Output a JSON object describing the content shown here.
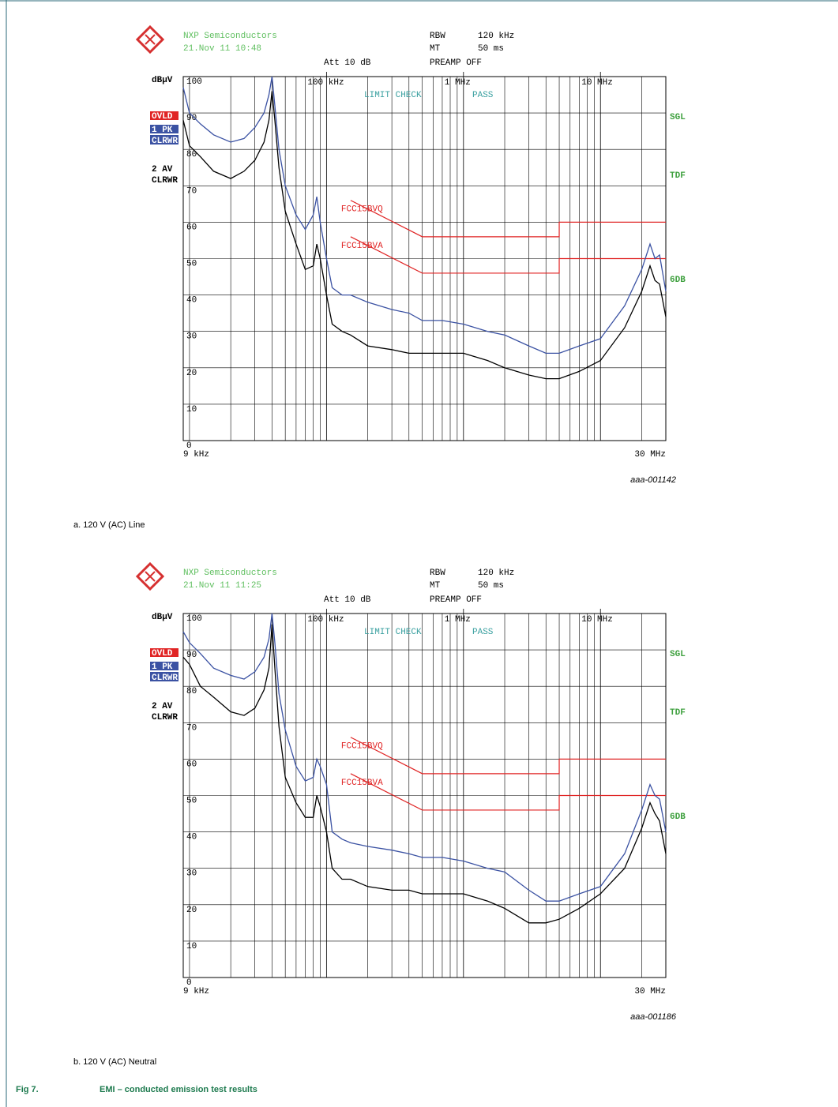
{
  "chart_data": [
    {
      "type": "line",
      "xscale": "log",
      "grid": true,
      "header": {
        "company": "NXP Semiconductors",
        "datetime": "21.Nov 11 10:48",
        "rbw_label": "RBW",
        "rbw": "120 kHz",
        "mt_label": "MT",
        "mt": "50 ms",
        "att": "Att 10 dB",
        "preamp": "PREAMP OFF"
      },
      "ylabel": "dBµV",
      "overload": "OVLD",
      "trace_mode": "CLRWR",
      "right_labels": [
        "SGL",
        "TDF",
        "6DB"
      ],
      "limit_check": "LIMIT CHECK",
      "limit_result": "PASS",
      "xlim": [
        9000,
        30000000
      ],
      "xlim_labels": [
        "9 kHz",
        "30 MHz"
      ],
      "xticks": [
        {
          "value": 100000,
          "label": "100 kHz"
        },
        {
          "value": 1000000,
          "label": "1 MHz"
        },
        {
          "value": 10000000,
          "label": "10 MHz"
        }
      ],
      "xgrid": [
        10000,
        20000,
        30000,
        40000,
        50000,
        60000,
        70000,
        80000,
        90000,
        200000,
        300000,
        400000,
        500000,
        600000,
        700000,
        800000,
        900000,
        2000000,
        3000000,
        4000000,
        5000000,
        6000000,
        7000000,
        8000000,
        9000000,
        20000000
      ],
      "ylim": [
        0,
        100
      ],
      "yticks": [
        0,
        10,
        20,
        30,
        40,
        50,
        60,
        70,
        80,
        90,
        100
      ],
      "x": [
        9000,
        10000,
        12000,
        15000,
        20000,
        25000,
        30000,
        35000,
        38000,
        40000,
        42000,
        45000,
        50000,
        60000,
        70000,
        80000,
        85000,
        90000,
        100000,
        110000,
        130000,
        150000,
        200000,
        300000,
        400000,
        500000,
        700000,
        1000000,
        1500000,
        2000000,
        3000000,
        4000000,
        5000000,
        7000000,
        10000000,
        15000000,
        20000000,
        23000000,
        25000000,
        27000000,
        30000000
      ],
      "series": [
        {
          "name": "1 PK",
          "color": "#3b52a3",
          "values": [
            97,
            90,
            87,
            84,
            82,
            83,
            86,
            90,
            95,
            100,
            92,
            80,
            70,
            62,
            58,
            62,
            67,
            60,
            50,
            42,
            40,
            40,
            38,
            36,
            35,
            33,
            33,
            32,
            30,
            29,
            26,
            24,
            24,
            26,
            28,
            37,
            47,
            54,
            50,
            51,
            41
          ]
        },
        {
          "name": "2 AV",
          "color": "#000000",
          "values": [
            88,
            81,
            78,
            74,
            72,
            74,
            77,
            82,
            88,
            96,
            88,
            75,
            63,
            54,
            47,
            48,
            54,
            50,
            40,
            32,
            30,
            29,
            26,
            25,
            24,
            24,
            24,
            24,
            22,
            20,
            18,
            17,
            17,
            19,
            22,
            31,
            41,
            48,
            44,
            43,
            34
          ]
        }
      ],
      "limits": [
        {
          "name": "FCC15BVQ",
          "color": "#e02424",
          "x": [
            150000,
            500000,
            5000000,
            5000000,
            30000000
          ],
          "values": [
            66,
            56,
            56,
            60,
            60
          ]
        },
        {
          "name": "FCC15BVA",
          "color": "#e02424",
          "x": [
            150000,
            500000,
            5000000,
            5000000,
            30000000
          ],
          "values": [
            56,
            46,
            46,
            50,
            50
          ]
        }
      ],
      "figure_id": "aaa-001142",
      "caption": "a.  120 V (AC) Line"
    },
    {
      "type": "line",
      "xscale": "log",
      "grid": true,
      "header": {
        "company": "NXP Semiconductors",
        "datetime": "21.Nov 11 11:25",
        "rbw_label": "RBW",
        "rbw": "120 kHz",
        "mt_label": "MT",
        "mt": "50 ms",
        "att": "Att 10 dB",
        "preamp": "PREAMP OFF"
      },
      "ylabel": "dBµV",
      "overload": "OVLD",
      "trace_mode": "CLRWR",
      "right_labels": [
        "SGL",
        "TDF",
        "6DB"
      ],
      "limit_check": "LIMIT CHECK",
      "limit_result": "PASS",
      "xlim": [
        9000,
        30000000
      ],
      "xlim_labels": [
        "9 kHz",
        "30 MHz"
      ],
      "xticks": [
        {
          "value": 100000,
          "label": "100 kHz"
        },
        {
          "value": 1000000,
          "label": "1 MHz"
        },
        {
          "value": 10000000,
          "label": "10 MHz"
        }
      ],
      "xgrid": [
        10000,
        20000,
        30000,
        40000,
        50000,
        60000,
        70000,
        80000,
        90000,
        200000,
        300000,
        400000,
        500000,
        600000,
        700000,
        800000,
        900000,
        2000000,
        3000000,
        4000000,
        5000000,
        6000000,
        7000000,
        8000000,
        9000000,
        20000000
      ],
      "ylim": [
        0,
        100
      ],
      "yticks": [
        0,
        10,
        20,
        30,
        40,
        50,
        60,
        70,
        80,
        90,
        100
      ],
      "x": [
        9000,
        10000,
        12000,
        15000,
        20000,
        25000,
        30000,
        35000,
        38000,
        40000,
        42000,
        45000,
        50000,
        60000,
        70000,
        80000,
        85000,
        90000,
        100000,
        110000,
        130000,
        150000,
        200000,
        300000,
        400000,
        500000,
        700000,
        1000000,
        1500000,
        2000000,
        3000000,
        4000000,
        5000000,
        7000000,
        10000000,
        15000000,
        20000000,
        23000000,
        25000000,
        27000000,
        30000000
      ],
      "series": [
        {
          "name": "1 PK",
          "color": "#3b52a3",
          "values": [
            95,
            92,
            89,
            85,
            83,
            82,
            84,
            88,
            93,
            100,
            92,
            78,
            68,
            58,
            54,
            55,
            60,
            58,
            53,
            40,
            38,
            37,
            36,
            35,
            34,
            33,
            33,
            32,
            30,
            29,
            24,
            21,
            21,
            23,
            25,
            34,
            46,
            53,
            50,
            49,
            40
          ]
        },
        {
          "name": "2 AV",
          "color": "#000000",
          "values": [
            88,
            86,
            80,
            77,
            73,
            72,
            74,
            79,
            85,
            97,
            85,
            69,
            55,
            48,
            44,
            44,
            50,
            47,
            40,
            30,
            27,
            27,
            25,
            24,
            24,
            23,
            23,
            23,
            21,
            19,
            15,
            15,
            16,
            19,
            23,
            30,
            41,
            48,
            45,
            43,
            34
          ]
        }
      ],
      "limits": [
        {
          "name": "FCC15BVQ",
          "color": "#e02424",
          "x": [
            150000,
            500000,
            5000000,
            5000000,
            30000000
          ],
          "values": [
            66,
            56,
            56,
            60,
            60
          ]
        },
        {
          "name": "FCC15BVA",
          "color": "#e02424",
          "x": [
            150000,
            500000,
            5000000,
            5000000,
            30000000
          ],
          "values": [
            56,
            46,
            46,
            50,
            50
          ]
        }
      ],
      "figure_id": "aaa-001186",
      "caption": "b.  120 V (AC) Neutral"
    }
  ],
  "figure": {
    "label": "Fig 7.",
    "title": "EMI – conducted emission test results"
  }
}
